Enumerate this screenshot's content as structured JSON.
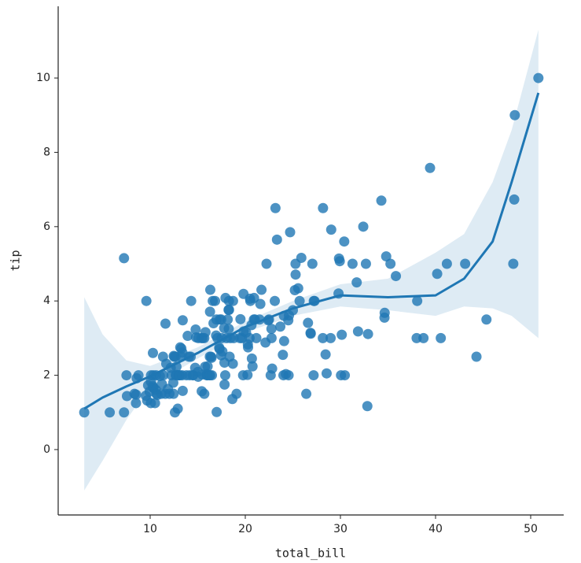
{
  "chart_data": {
    "type": "scatter",
    "x_label": "total_bill",
    "y_label": "tip",
    "color": "#1f77b4",
    "xlim": [
      0.33,
      53.47
    ],
    "ylim": [
      -1.76,
      11.93
    ],
    "xticks": [
      10,
      20,
      30,
      40,
      50
    ],
    "yticks": [
      0,
      2,
      4,
      6,
      8,
      10
    ],
    "x": [
      3.07,
      5.75,
      7.25,
      7.25,
      7.51,
      7.56,
      8.35,
      8.51,
      8.52,
      8.58,
      8.77,
      9.55,
      9.6,
      9.68,
      9.78,
      9.94,
      10.07,
      10.07,
      10.09,
      10.27,
      10.29,
      10.33,
      10.34,
      10.34,
      10.51,
      10.59,
      10.63,
      10.65,
      10.77,
      11.02,
      11.17,
      11.24,
      11.35,
      11.38,
      11.59,
      11.61,
      11.69,
      11.87,
      12.03,
      12.16,
      12.26,
      12.43,
      12.46,
      12.48,
      12.54,
      12.6,
      12.66,
      12.69,
      12.74,
      12.76,
      12.9,
      13,
      13.03,
      13.13,
      13.16,
      13.27,
      13.28,
      13.37,
      13.39,
      13.42,
      13.42,
      13.81,
      13.94,
      14.07,
      14.15,
      14.26,
      14.31,
      14.48,
      14.52,
      14.73,
      14.78,
      14.83,
      15.01,
      15.04,
      15.06,
      15.38,
      15.42,
      15.48,
      15.53,
      15.69,
      15.69,
      15.77,
      15.81,
      15.95,
      15.98,
      16,
      16.04,
      16.21,
      16.27,
      16.29,
      16.31,
      16.32,
      16.4,
      16.45,
      16.49,
      16.58,
      16.66,
      16.82,
      16.93,
      16.97,
      16.99,
      17.07,
      17.26,
      17.29,
      17.31,
      17.46,
      17.47,
      17.51,
      17.59,
      17.78,
      17.81,
      17.82,
      17.89,
      17.92,
      18.04,
      18.15,
      18.24,
      18.26,
      18.28,
      18.29,
      18.35,
      18.43,
      18.64,
      18.69,
      18.71,
      18.78,
      19.08,
      19.44,
      19.49,
      19.65,
      19.77,
      19.81,
      19.82,
      20.08,
      20.23,
      20.27,
      20.29,
      20.45,
      20.49,
      20.53,
      20.65,
      20.69,
      20.76,
      20.9,
      20.92,
      21.01,
      21.16,
      21.5,
      21.58,
      21.7,
      22.12,
      22.23,
      22.42,
      22.49,
      22.67,
      22.75,
      22.76,
      22.82,
      23.1,
      23.17,
      23.33,
      23.68,
      23.95,
      24.01,
      24.06,
      24.08,
      24.27,
      24.52,
      24.55,
      24.59,
      24.71,
      25,
      25.21,
      25.28,
      25.29,
      25.56,
      25.71,
      25.89,
      26.41,
      26.59,
      26.86,
      26.88,
      27.05,
      27.18,
      27.2,
      27.28,
      28.15,
      28.17,
      28.44,
      28.55,
      28.97,
      29.03,
      29.8,
      29.85,
      29.93,
      30.06,
      30.14,
      30.4,
      30.46,
      31.27,
      31.71,
      31.85,
      32.4,
      32.68,
      32.83,
      32.9,
      34.3,
      34.63,
      34.65,
      34.81,
      35.26,
      35.83,
      38.01,
      38.07,
      38.73,
      39.42,
      40.17,
      40.55,
      41.19,
      43.11,
      44.3,
      45.35,
      48.17,
      48.27,
      48.33,
      50.81
    ],
    "values": [
      1,
      1,
      1,
      5.15,
      2,
      1.44,
      1.5,
      1.25,
      1.48,
      1.92,
      2,
      1.45,
      4,
      1.32,
      1.73,
      1.56,
      1.83,
      1.25,
      2,
      1.71,
      2.6,
      1.67,
      1.66,
      2,
      1.25,
      1.61,
      2,
      1.5,
      1.47,
      1.98,
      1.5,
      1.76,
      2.5,
      2,
      1.5,
      3.39,
      2.31,
      1.63,
      1.5,
      2.2,
      2,
      1.8,
      1.5,
      2.52,
      2.5,
      1,
      2.5,
      2,
      2.01,
      2.23,
      1.1,
      2,
      2,
      2,
      2.75,
      2.5,
      2.72,
      2,
      2.61,
      3.48,
      1.58,
      2,
      3.06,
      2.5,
      2,
      2.5,
      4,
      2,
      2,
      2.2,
      3.23,
      3.02,
      2.09,
      1.96,
      3,
      3,
      1.57,
      2.02,
      3,
      3,
      1.5,
      2.23,
      3.16,
      2,
      2.03,
      2,
      2.24,
      2,
      2.5,
      3.71,
      2,
      4.3,
      2.5,
      2.47,
      2,
      4,
      3.4,
      4,
      3.07,
      3.5,
      1.01,
      3,
      2.74,
      2.71,
      3.5,
      2.54,
      3.5,
      3,
      2.64,
      3.27,
      2.34,
      1.75,
      2,
      4.08,
      3,
      3.5,
      3.76,
      3.25,
      4,
      3.76,
      2.5,
      3,
      1.36,
      2.31,
      4,
      3,
      1.5,
      3,
      3.51,
      3,
      2,
      4.19,
      3.18,
      3.15,
      2.01,
      2.83,
      2.75,
      3,
      4.06,
      4,
      3.35,
      2.45,
      2.24,
      3.5,
      4.08,
      3.5,
      3,
      3.5,
      3.92,
      4.3,
      2.88,
      5,
      3.48,
      3.5,
      2,
      3.25,
      3,
      2.18,
      4,
      6.5,
      5.65,
      3.31,
      2.55,
      2,
      3.6,
      2.92,
      2.03,
      3.48,
      2,
      3.61,
      5.85,
      3.75,
      4.29,
      5,
      4.71,
      4.34,
      4,
      5.16,
      1.5,
      3.41,
      3.14,
      3.12,
      5,
      2,
      4,
      4,
      3,
      6.5,
      2.56,
      2.05,
      3,
      5.92,
      4.2,
      5.14,
      5.07,
      2,
      3.09,
      5.6,
      2,
      5,
      4.5,
      3.18,
      6,
      5,
      1.17,
      3.11,
      6.7,
      3.55,
      3.68,
      5.2,
      5,
      4.67,
      3,
      4,
      3,
      7.58,
      4.73,
      3,
      5,
      5,
      2.5,
      3.5,
      5,
      6.73,
      9,
      10
    ],
    "fit": {
      "x": [
        3.07,
        5,
        7.5,
        10,
        15,
        20,
        25,
        30,
        35,
        40,
        43,
        46,
        48,
        50.81
      ],
      "values": [
        1.1,
        1.4,
        1.7,
        1.97,
        2.6,
        3.3,
        3.8,
        4.15,
        4.1,
        4.15,
        4.6,
        5.6,
        7.2,
        9.6
      ],
      "ci_lower": [
        -1.1,
        -0.3,
        0.8,
        1.7,
        2.45,
        3.15,
        3.6,
        3.85,
        3.75,
        3.6,
        3.85,
        3.8,
        3.6,
        3.0
      ],
      "ci_upper": [
        4.1,
        3.1,
        2.4,
        2.25,
        2.75,
        3.45,
        4.0,
        4.45,
        4.6,
        5.3,
        5.8,
        7.2,
        8.6,
        11.3
      ]
    }
  }
}
